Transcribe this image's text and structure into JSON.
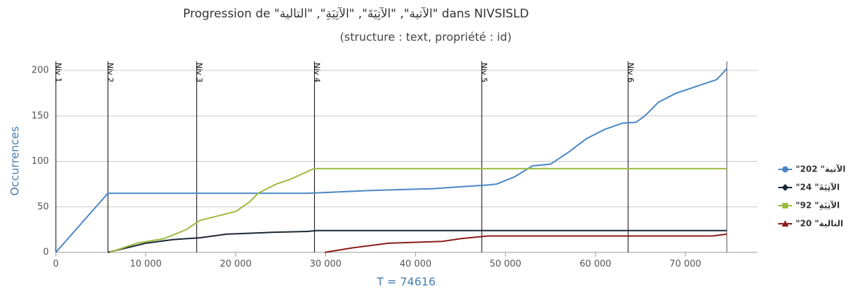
{
  "chart_data": {
    "type": "line",
    "title": "Progression de \"الآتية\", \"الآتِيَةَ\", \"الآتِيَةِ\", \"التالية\" dans NIVSISLD",
    "subtitle": "(structure : text, propriété : id)",
    "y_label": "Occurrences",
    "x_label": "T = 74616",
    "xlim": [
      0,
      78000
    ],
    "ylim": [
      0,
      200
    ],
    "xticks": [
      0,
      {
        "value": 10000,
        "label": "10 000"
      },
      {
        "value": 20000,
        "label": "20 000"
      },
      {
        "value": 30000,
        "label": "30 000"
      },
      {
        "value": 40000,
        "label": "40 000"
      },
      {
        "value": 50000,
        "label": "50 000"
      },
      {
        "value": 60000,
        "label": "60 000"
      },
      {
        "value": 70000,
        "label": "70 000"
      }
    ],
    "yticks": [
      0,
      50,
      100,
      150,
      200
    ],
    "grid": true,
    "legend": "right",
    "markers": [
      {
        "label": "Niv 1",
        "x": 0
      },
      {
        "label": "Niv 2",
        "x": 5800
      },
      {
        "label": "Niv 3",
        "x": 15660
      },
      {
        "label": "Niv 4",
        "x": 28760
      },
      {
        "label": "Niv 5",
        "x": 47360
      },
      {
        "label": "Niv 6",
        "x": 63640
      }
    ],
    "series": [
      {
        "name": "\"الآتية\" 202",
        "color": "#4a86c5",
        "symbol": "circle",
        "x": [
          0,
          5800,
          28000,
          35000,
          42000,
          48000,
          49000,
          51000,
          53000,
          55000,
          57000,
          59000,
          61000,
          63000,
          64500,
          65500,
          67000,
          69000,
          72000,
          73500,
          74616
        ],
        "values": [
          0,
          65,
          65,
          68,
          70,
          74,
          75,
          83,
          95,
          97,
          110,
          125,
          135,
          142,
          143,
          150,
          165,
          175,
          185,
          190,
          202
        ]
      },
      {
        "name": "\"الآتِيَةَ\" 24",
        "color": "#1a2633",
        "symbol": "diamond",
        "x": [
          5800,
          10000,
          13000,
          16000,
          19000,
          24000,
          28000,
          29000,
          74616
        ],
        "values": [
          0,
          10,
          14,
          16,
          20,
          22,
          23,
          24,
          24
        ]
      },
      {
        "name": "\"الآتِيَةِ\" 92",
        "color": "#9bbb3c",
        "symbol": "square",
        "x": [
          6000,
          9000,
          12000,
          14500,
          16000,
          18000,
          20000,
          21500,
          22500,
          24500,
          26000,
          28700,
          74616
        ],
        "values": [
          0,
          10,
          15,
          25,
          35,
          40,
          45,
          55,
          65,
          75,
          80,
          92,
          92
        ]
      },
      {
        "name": "\"التالية\" 20",
        "color": "#8b1a1a",
        "symbol": "triangle",
        "x": [
          29900,
          33000,
          37000,
          43000,
          45000,
          48000,
          73000,
          74616
        ],
        "values": [
          0,
          5,
          10,
          12,
          15,
          18,
          18,
          20
        ]
      }
    ]
  }
}
